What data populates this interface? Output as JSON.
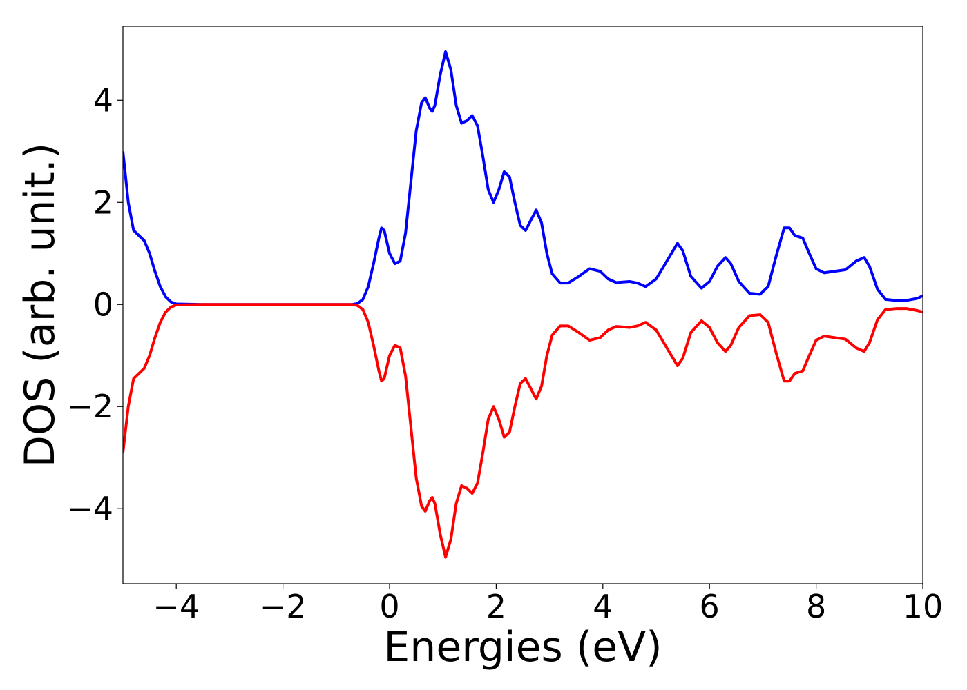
{
  "chart_data": {
    "type": "line",
    "xlabel": "Energies (eV)",
    "ylabel": "DOS (arb. unit.)",
    "x": [
      -5,
      -4.9,
      -4.8,
      -4.7,
      -4.6,
      -4.5,
      -4.4,
      -4.3,
      -4.2,
      -4.1,
      -4.0,
      -3.5,
      -3,
      -2,
      -1,
      -0.7,
      -0.6,
      -0.5,
      -0.4,
      -0.3,
      -0.2,
      -0.15,
      -0.1,
      0,
      0.1,
      0.2,
      0.3,
      0.4,
      0.5,
      0.6,
      0.67,
      0.75,
      0.8,
      0.85,
      0.95,
      1.05,
      1.15,
      1.25,
      1.35,
      1.45,
      1.55,
      1.65,
      1.75,
      1.85,
      1.95,
      2.05,
      2.15,
      2.25,
      2.35,
      2.45,
      2.55,
      2.65,
      2.75,
      2.85,
      2.95,
      3.05,
      3.2,
      3.35,
      3.55,
      3.75,
      3.95,
      4.1,
      4.25,
      4.5,
      4.65,
      4.8,
      5.0,
      5.2,
      5.4,
      5.5,
      5.65,
      5.85,
      6.0,
      6.15,
      6.3,
      6.4,
      6.55,
      6.75,
      6.95,
      7.1,
      7.25,
      7.4,
      7.5,
      7.6,
      7.75,
      7.85,
      8.0,
      8.15,
      8.35,
      8.55,
      8.75,
      8.9,
      9.0,
      9.15,
      9.3,
      9.5,
      9.7,
      9.9,
      10
    ],
    "series": [
      {
        "color": "#0000ff",
        "values": [
          3.0,
          2.0,
          1.45,
          1.35,
          1.25,
          1.0,
          0.65,
          0.35,
          0.15,
          0.05,
          0.01,
          0,
          0,
          0,
          0,
          0,
          0.02,
          0.1,
          0.35,
          0.8,
          1.3,
          1.5,
          1.45,
          1.0,
          0.8,
          0.85,
          1.4,
          2.4,
          3.4,
          3.95,
          4.05,
          3.85,
          3.78,
          3.9,
          4.5,
          4.95,
          4.6,
          3.9,
          3.55,
          3.6,
          3.7,
          3.5,
          2.9,
          2.25,
          2.0,
          2.25,
          2.6,
          2.5,
          2.0,
          1.55,
          1.45,
          1.65,
          1.85,
          1.6,
          1.0,
          0.6,
          0.42,
          0.42,
          0.55,
          0.7,
          0.65,
          0.5,
          0.43,
          0.45,
          0.42,
          0.35,
          0.5,
          0.85,
          1.2,
          1.05,
          0.55,
          0.32,
          0.45,
          0.75,
          0.92,
          0.8,
          0.45,
          0.22,
          0.2,
          0.35,
          0.95,
          1.5,
          1.5,
          1.35,
          1.3,
          1.05,
          0.7,
          0.62,
          0.65,
          0.68,
          0.85,
          0.92,
          0.75,
          0.3,
          0.1,
          0.08,
          0.08,
          0.12,
          0.17
        ]
      },
      {
        "color": "#ff0000",
        "values": [
          -2.9,
          -2.0,
          -1.45,
          -1.35,
          -1.25,
          -1.0,
          -0.65,
          -0.35,
          -0.15,
          -0.05,
          -0.01,
          0,
          0,
          0,
          0,
          0,
          -0.02,
          -0.1,
          -0.35,
          -0.8,
          -1.3,
          -1.5,
          -1.45,
          -1.0,
          -0.8,
          -0.85,
          -1.4,
          -2.4,
          -3.4,
          -3.95,
          -4.05,
          -3.85,
          -3.78,
          -3.9,
          -4.5,
          -4.95,
          -4.6,
          -3.9,
          -3.55,
          -3.6,
          -3.7,
          -3.5,
          -2.9,
          -2.25,
          -2.0,
          -2.25,
          -2.6,
          -2.5,
          -2.0,
          -1.55,
          -1.45,
          -1.65,
          -1.85,
          -1.6,
          -1.0,
          -0.6,
          -0.42,
          -0.42,
          -0.55,
          -0.7,
          -0.65,
          -0.5,
          -0.43,
          -0.45,
          -0.42,
          -0.35,
          -0.5,
          -0.85,
          -1.2,
          -1.05,
          -0.55,
          -0.32,
          -0.45,
          -0.75,
          -0.92,
          -0.8,
          -0.45,
          -0.22,
          -0.2,
          -0.35,
          -0.95,
          -1.5,
          -1.5,
          -1.35,
          -1.3,
          -1.05,
          -0.7,
          -0.62,
          -0.65,
          -0.68,
          -0.85,
          -0.92,
          -0.75,
          -0.3,
          -0.1,
          -0.08,
          -0.08,
          -0.12,
          -0.15
        ]
      }
    ],
    "xlim": [
      -5,
      10
    ],
    "xticks": [
      {
        "value": -4,
        "label": "−4"
      },
      {
        "value": -2,
        "label": "−2"
      },
      0,
      2,
      4,
      6,
      8,
      10
    ],
    "ylim": [
      -5.47,
      5.45
    ],
    "yticks": [
      {
        "value": -4,
        "label": "−4"
      },
      {
        "value": -2,
        "label": "−2"
      },
      0,
      2,
      4
    ],
    "grid": false
  }
}
